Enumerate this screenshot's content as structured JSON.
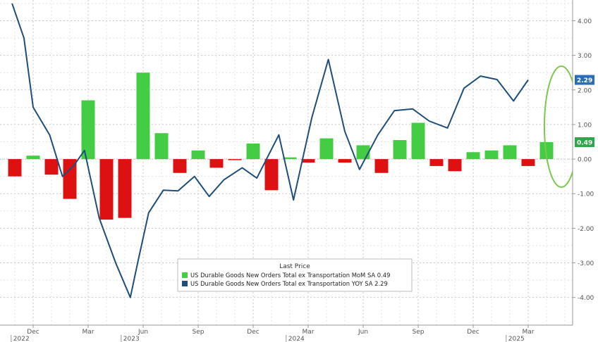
{
  "chart_data": {
    "type": "bar",
    "y_ticks": [
      "-4.00",
      "-3.00",
      "-2.00",
      "-1.00",
      "0.00",
      "1.00",
      "2.00",
      "3.00",
      "4.00"
    ],
    "ylim": [
      -4.8,
      4.6
    ],
    "x_ticks": [
      {
        "label": "Dec",
        "year": "2022",
        "index": 1
      },
      {
        "label": "Mar",
        "index": 4
      },
      {
        "label": "Jun",
        "year": "2023",
        "index": 7
      },
      {
        "label": "Sep",
        "index": 10
      },
      {
        "label": "Dec",
        "index": 13
      },
      {
        "label": "Mar",
        "year": "2024",
        "index": 16
      },
      {
        "label": "Jun",
        "index": 19
      },
      {
        "label": "Sep",
        "index": 22
      },
      {
        "label": "Dec",
        "index": 25
      },
      {
        "label": "Mar",
        "year": "2025",
        "index": 28
      }
    ],
    "legend": {
      "title": "Last Price",
      "placement": "bottom-center",
      "entries": [
        {
          "label": "US Durable Goods New Orders Total ex Transportation MoM SA",
          "last": "0.49",
          "color": "#44cc44"
        },
        {
          "label": "US Durable Goods New Orders Total ex Transportation YOY SA",
          "last": "2.29",
          "color": "#1f4e79"
        }
      ]
    },
    "last_value_labels": [
      {
        "text": "2.29",
        "value": 2.29,
        "color": "#2a6ebb"
      },
      {
        "text": "0.49",
        "value": 0.49,
        "color": "#2ea84a"
      }
    ],
    "series": [
      {
        "name": "US Durable Goods New Orders Total ex Transportation MoM SA",
        "type": "bar",
        "positive_color": "#44cc44",
        "negative_color": "#dd1111",
        "values": [
          -0.5,
          0.1,
          -0.45,
          -1.15,
          1.7,
          -1.75,
          -1.7,
          2.5,
          0.75,
          -0.4,
          0.25,
          -0.25,
          -0.03,
          0.45,
          -0.9,
          0.05,
          -0.1,
          0.6,
          -0.1,
          0.4,
          -0.4,
          0.55,
          1.05,
          -0.2,
          -0.35,
          0.2,
          0.25,
          0.4,
          -0.2,
          0.49
        ]
      },
      {
        "name": "US Durable Goods New Orders Total ex Transportation YOY SA",
        "type": "line",
        "color": "#1f4e79",
        "points": [
          [
            -0.15,
            4.5
          ],
          [
            0.5,
            3.5
          ],
          [
            1.0,
            1.5
          ],
          [
            1.9,
            0.7
          ],
          [
            2.6,
            -0.5
          ],
          [
            3.2,
            -0.2
          ],
          [
            3.8,
            0.25
          ],
          [
            4.6,
            -1.7
          ],
          [
            5.5,
            -3.0
          ],
          [
            6.3,
            -4.0
          ],
          [
            6.7,
            -3.0
          ],
          [
            7.3,
            -1.55
          ],
          [
            8.1,
            -0.9
          ],
          [
            8.9,
            -0.92
          ],
          [
            9.8,
            -0.5
          ],
          [
            10.6,
            -1.08
          ],
          [
            11.4,
            -0.6
          ],
          [
            12.4,
            -0.25
          ],
          [
            13.2,
            -0.55
          ],
          [
            14.4,
            0.7
          ],
          [
            15.2,
            -1.18
          ],
          [
            16.2,
            1.2
          ],
          [
            17.1,
            2.88
          ],
          [
            18.0,
            0.8
          ],
          [
            18.8,
            -0.3
          ],
          [
            19.8,
            0.7
          ],
          [
            20.7,
            1.4
          ],
          [
            21.7,
            1.45
          ],
          [
            22.6,
            1.1
          ],
          [
            23.6,
            0.9
          ],
          [
            24.5,
            2.05
          ],
          [
            25.4,
            2.4
          ],
          [
            26.3,
            2.3
          ],
          [
            27.2,
            1.68
          ],
          [
            28.0,
            2.29
          ]
        ]
      }
    ]
  }
}
